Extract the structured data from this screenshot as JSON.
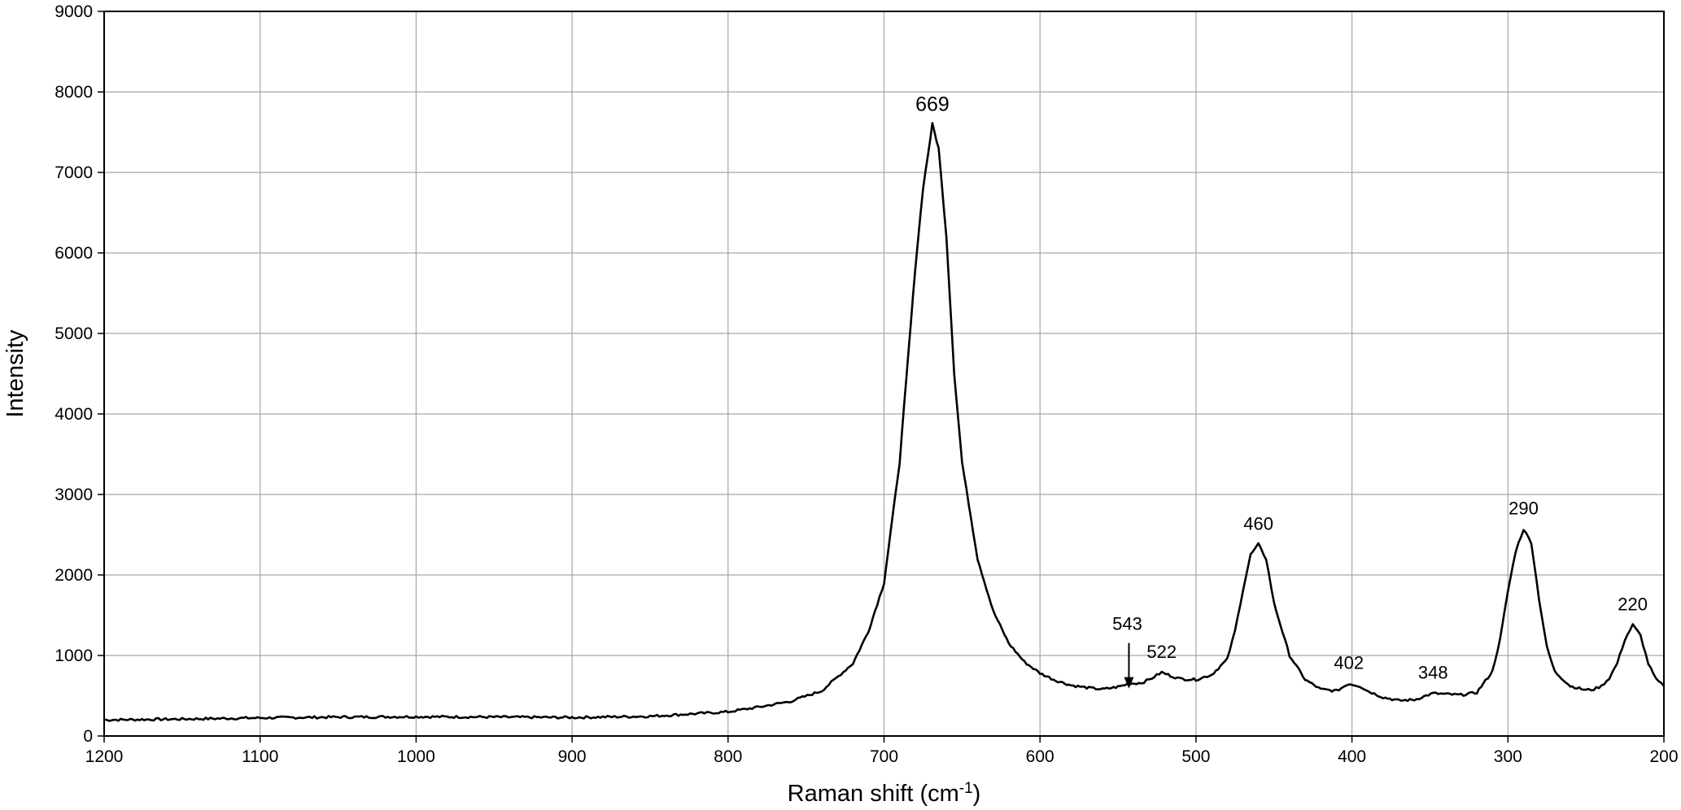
{
  "chart_data": {
    "type": "line",
    "title": "",
    "xlabel": "Raman shift (cm",
    "xlabel_sup": "-1",
    "xlabel_end": ")",
    "ylabel": "Intensity",
    "xlim": [
      1200,
      200
    ],
    "x_reversed": true,
    "ylim": [
      0,
      9000
    ],
    "x_ticks": [
      1200,
      1100,
      1000,
      900,
      800,
      700,
      600,
      500,
      400,
      300,
      200
    ],
    "x_tick_labels": [
      "1200",
      "1100",
      "1000",
      "900",
      "800",
      "700",
      "600",
      "500",
      "400",
      "300",
      "200"
    ],
    "y_ticks": [
      0,
      1000,
      2000,
      3000,
      4000,
      5000,
      6000,
      7000,
      8000,
      9000
    ],
    "y_tick_labels": [
      "0",
      "1000",
      "2000",
      "3000",
      "4000",
      "5000",
      "6000",
      "7000",
      "8000",
      "9000"
    ],
    "grid": true,
    "legend": "none",
    "series": [
      {
        "x": [
          1200,
          1150,
          1100,
          1050,
          1000,
          950,
          900,
          850,
          800,
          780,
          760,
          740,
          720,
          710,
          700,
          690,
          680,
          675,
          669,
          665,
          660,
          655,
          650,
          640,
          630,
          620,
          610,
          600,
          590,
          580,
          570,
          560,
          550,
          543,
          535,
          530,
          522,
          515,
          510,
          500,
          490,
          480,
          475,
          470,
          465,
          460,
          455,
          450,
          440,
          430,
          420,
          410,
          402,
          395,
          390,
          380,
          370,
          360,
          348,
          340,
          330,
          320,
          310,
          305,
          300,
          295,
          290,
          285,
          280,
          275,
          270,
          260,
          250,
          245,
          240,
          235,
          230,
          225,
          220,
          215,
          210,
          205,
          200
        ],
        "y": [
          200,
          210,
          225,
          235,
          240,
          235,
          230,
          245,
          300,
          360,
          430,
          560,
          900,
          1300,
          1900,
          3400,
          5800,
          6800,
          7600,
          7300,
          6200,
          4500,
          3400,
          2200,
          1550,
          1150,
          920,
          780,
          690,
          630,
          600,
          580,
          610,
          650,
          660,
          700,
          790,
          740,
          710,
          700,
          760,
          950,
          1300,
          1800,
          2250,
          2380,
          2200,
          1650,
          1000,
          700,
          580,
          560,
          650,
          620,
          560,
          480,
          440,
          450,
          530,
          520,
          510,
          540,
          800,
          1200,
          1800,
          2300,
          2570,
          2400,
          1700,
          1100,
          800,
          620,
          570,
          580,
          620,
          720,
          900,
          1200,
          1380,
          1250,
          900,
          700,
          620
        ]
      }
    ],
    "annotations": [
      {
        "text": "669",
        "x": 669,
        "y": 7600
      },
      {
        "text": "543",
        "x": 543,
        "y": 650,
        "arrow": true
      },
      {
        "text": "522",
        "x": 522,
        "y": 790
      },
      {
        "text": "460",
        "x": 460,
        "y": 2380
      },
      {
        "text": "402",
        "x": 402,
        "y": 650
      },
      {
        "text": "348",
        "x": 348,
        "y": 530
      },
      {
        "text": "290",
        "x": 290,
        "y": 2570
      },
      {
        "text": "220",
        "x": 220,
        "y": 1380
      }
    ]
  }
}
